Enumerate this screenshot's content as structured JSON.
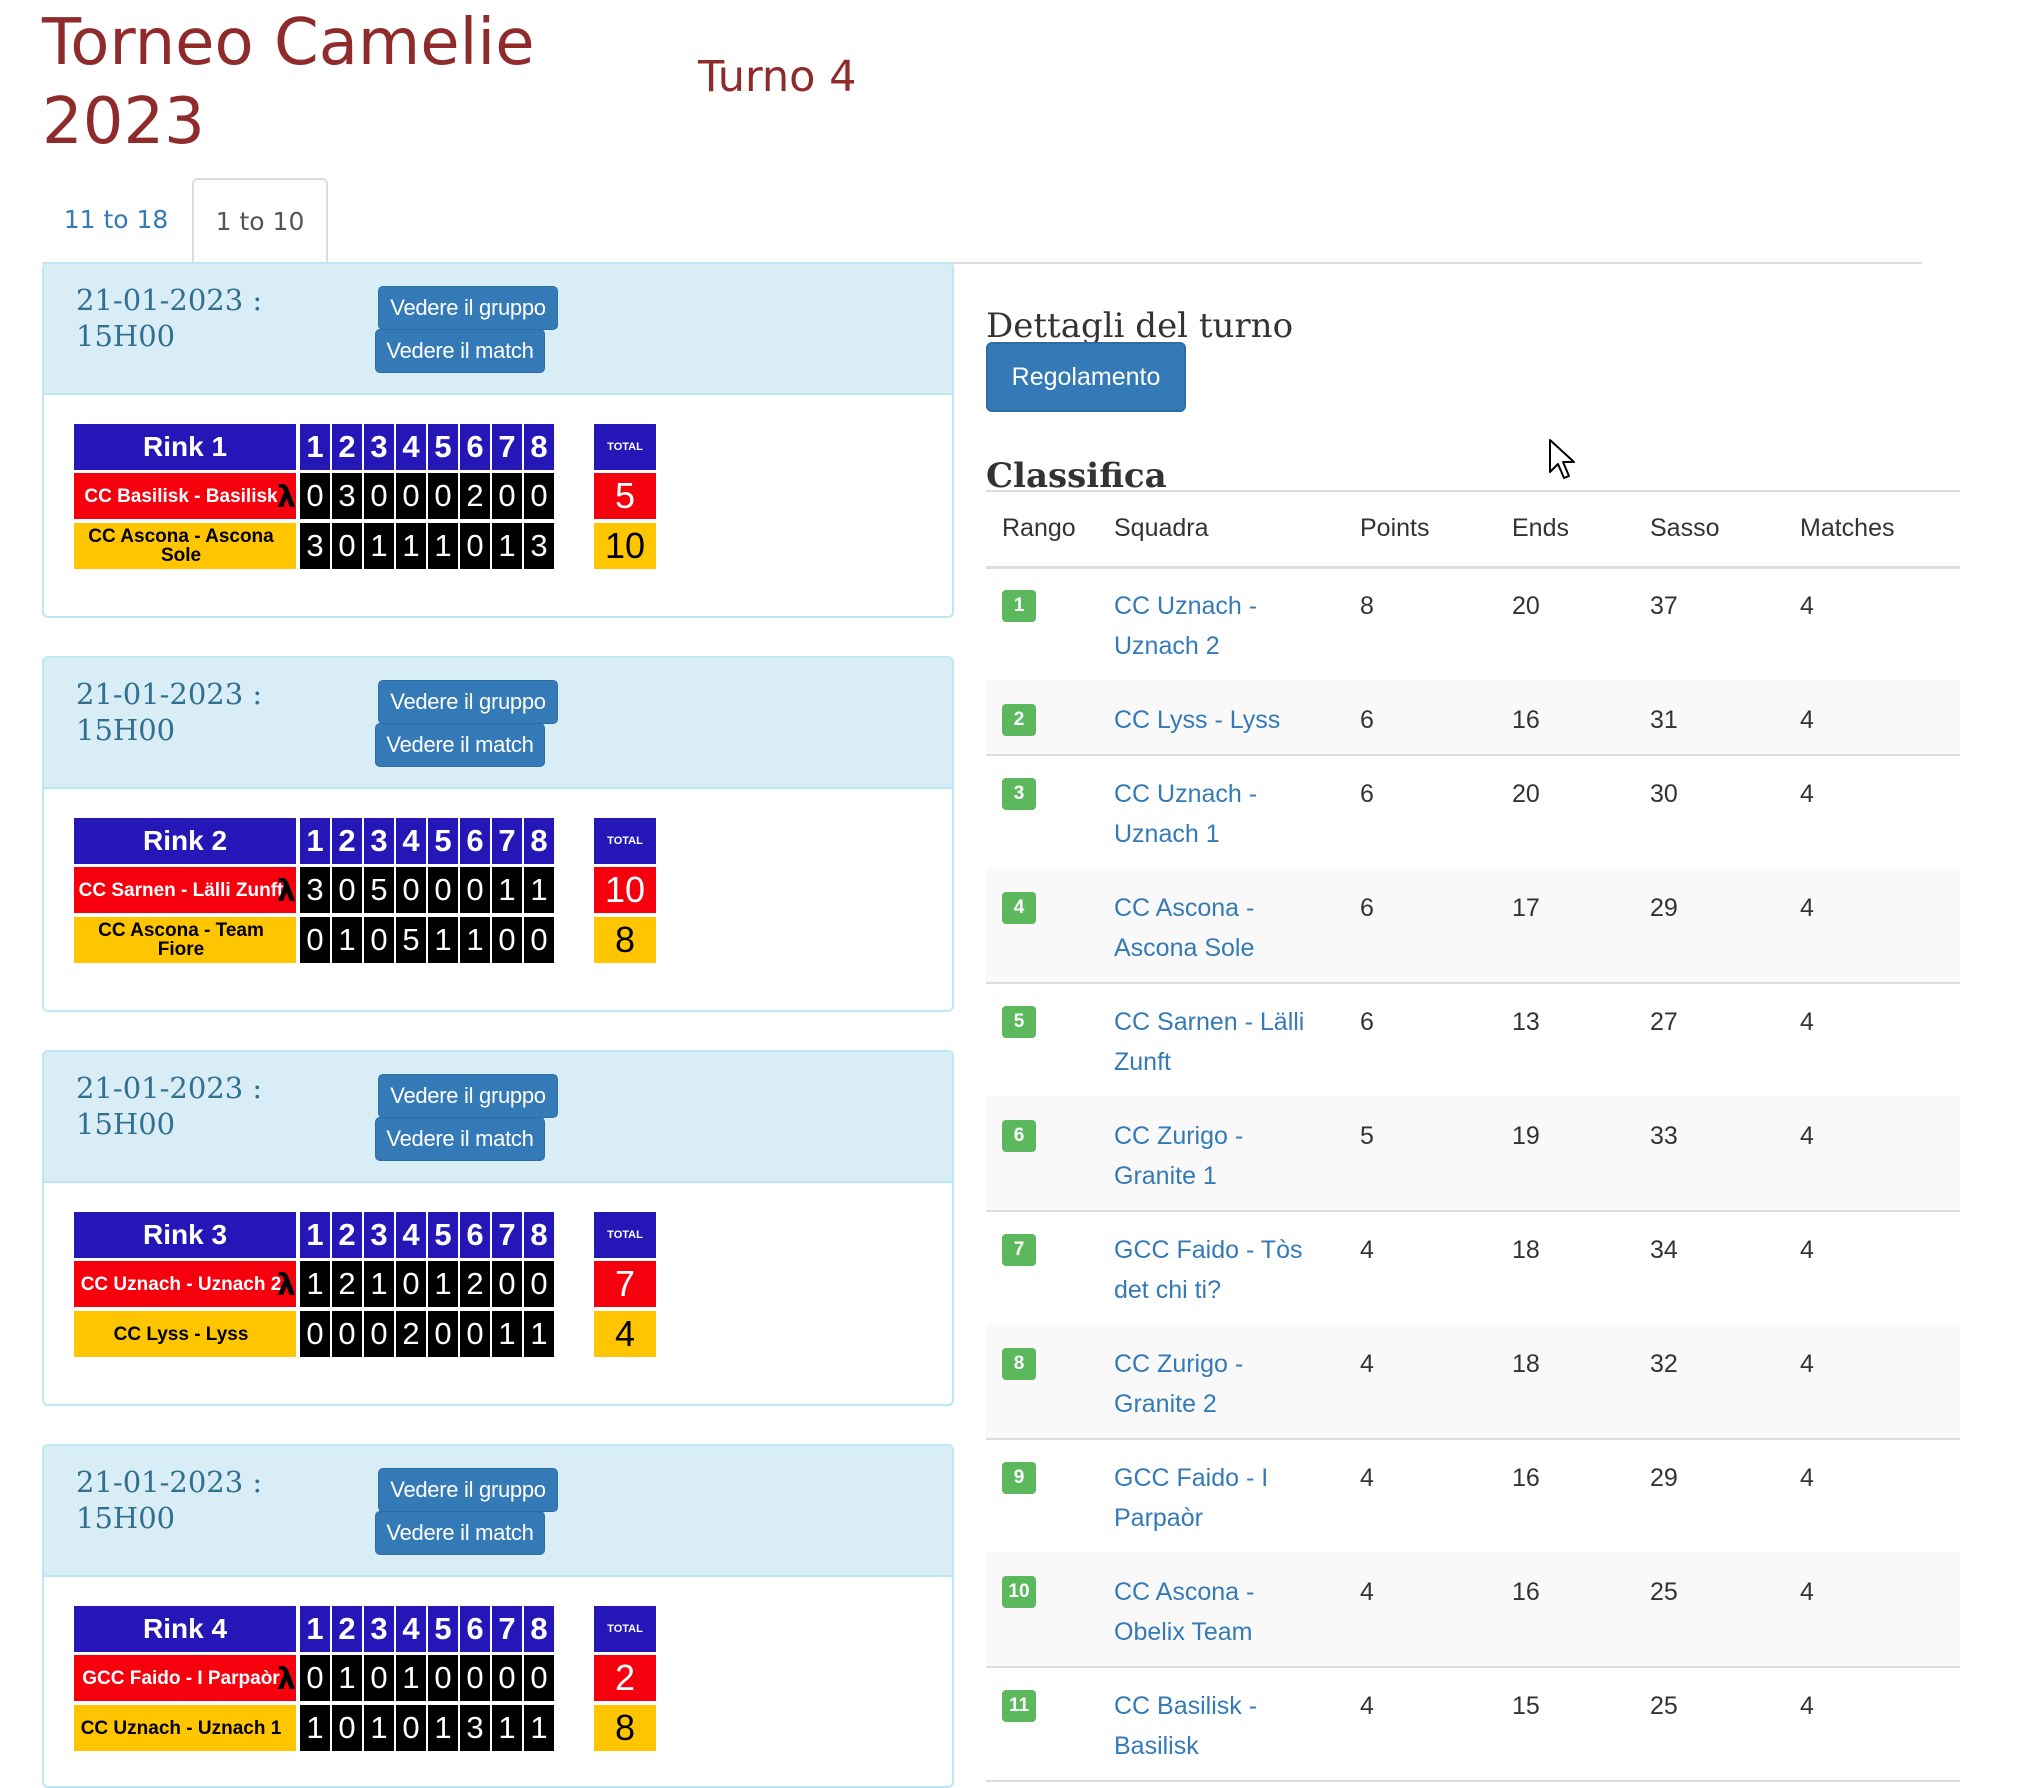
{
  "header": {
    "title": "Torneo Camelie 2023",
    "round": "Turno 4"
  },
  "tabs": [
    {
      "label": "11 to 18",
      "active": false
    },
    {
      "label": "1 to 10",
      "active": true
    }
  ],
  "matches": [
    {
      "datetime": "21-01-2023 : 15H00",
      "group_button": "Vedere il gruppo",
      "match_button": "Vedere il match",
      "rink": "Rink 1",
      "ends": [
        "1",
        "2",
        "3",
        "4",
        "5",
        "6",
        "7",
        "8"
      ],
      "total_label": "TOTAL",
      "team_red": {
        "name": "CC Basilisk - Basilisk",
        "scores": [
          "0",
          "3",
          "0",
          "0",
          "0",
          "2",
          "0",
          "0"
        ],
        "total": "5"
      },
      "team_yellow": {
        "name": "CC Ascona - Ascona Sole",
        "scores": [
          "3",
          "0",
          "1",
          "1",
          "1",
          "0",
          "1",
          "3"
        ],
        "total": "10"
      }
    },
    {
      "datetime": "21-01-2023 : 15H00",
      "group_button": "Vedere il gruppo",
      "match_button": "Vedere il match",
      "rink": "Rink 2",
      "ends": [
        "1",
        "2",
        "3",
        "4",
        "5",
        "6",
        "7",
        "8"
      ],
      "total_label": "TOTAL",
      "team_red": {
        "name": "CC Sarnen - Lälli Zunft",
        "scores": [
          "3",
          "0",
          "5",
          "0",
          "0",
          "0",
          "1",
          "1"
        ],
        "total": "10"
      },
      "team_yellow": {
        "name": "CC Ascona - Team Fiore",
        "scores": [
          "0",
          "1",
          "0",
          "5",
          "1",
          "1",
          "0",
          "0"
        ],
        "total": "8"
      }
    },
    {
      "datetime": "21-01-2023 : 15H00",
      "group_button": "Vedere il gruppo",
      "match_button": "Vedere il match",
      "rink": "Rink 3",
      "ends": [
        "1",
        "2",
        "3",
        "4",
        "5",
        "6",
        "7",
        "8"
      ],
      "total_label": "TOTAL",
      "team_red": {
        "name": "CC Uznach - Uznach 2",
        "scores": [
          "1",
          "2",
          "1",
          "0",
          "1",
          "2",
          "0",
          "0"
        ],
        "total": "7"
      },
      "team_yellow": {
        "name": "CC Lyss - Lyss",
        "scores": [
          "0",
          "0",
          "0",
          "2",
          "0",
          "0",
          "1",
          "1"
        ],
        "total": "4"
      }
    },
    {
      "datetime": "21-01-2023 : 15H00",
      "group_button": "Vedere il gruppo",
      "match_button": "Vedere il match",
      "rink": "Rink 4",
      "ends": [
        "1",
        "2",
        "3",
        "4",
        "5",
        "6",
        "7",
        "8"
      ],
      "total_label": "TOTAL",
      "team_red": {
        "name": "GCC Faido - I Parpaòr",
        "scores": [
          "0",
          "1",
          "0",
          "1",
          "0",
          "0",
          "0",
          "0"
        ],
        "total": "2"
      },
      "team_yellow": {
        "name": "CC Uznach - Uznach 1",
        "scores": [
          "1",
          "0",
          "1",
          "0",
          "1",
          "3",
          "1",
          "1"
        ],
        "total": "8"
      }
    }
  ],
  "details": {
    "title": "Dettagli del turno",
    "rules_button": "Regolamento",
    "ranking_title": "Classifica"
  },
  "standings": {
    "columns": [
      "Rango",
      "Squadra",
      "Points",
      "Ends",
      "Sasso",
      "Matches"
    ],
    "rows": [
      {
        "rank": "1",
        "team": "CC Uznach - Uznach 2",
        "points": "8",
        "ends": "20",
        "sasso": "37",
        "matches": "4"
      },
      {
        "rank": "2",
        "team": "CC Lyss - Lyss",
        "points": "6",
        "ends": "16",
        "sasso": "31",
        "matches": "4"
      },
      {
        "rank": "3",
        "team": "CC Uznach - Uznach 1",
        "points": "6",
        "ends": "20",
        "sasso": "30",
        "matches": "4"
      },
      {
        "rank": "4",
        "team": "CC Ascona - Ascona Sole",
        "points": "6",
        "ends": "17",
        "sasso": "29",
        "matches": "4"
      },
      {
        "rank": "5",
        "team": "CC Sarnen - Lälli Zunft",
        "points": "6",
        "ends": "13",
        "sasso": "27",
        "matches": "4"
      },
      {
        "rank": "6",
        "team": "CC Zurigo - Granite 1",
        "points": "5",
        "ends": "19",
        "sasso": "33",
        "matches": "4"
      },
      {
        "rank": "7",
        "team": "GCC Faido - Tòs det chi ti?",
        "points": "4",
        "ends": "18",
        "sasso": "34",
        "matches": "4"
      },
      {
        "rank": "8",
        "team": "CC Zurigo - Granite 2",
        "points": "4",
        "ends": "18",
        "sasso": "32",
        "matches": "4"
      },
      {
        "rank": "9",
        "team": "GCC Faido - I Parpaòr",
        "points": "4",
        "ends": "16",
        "sasso": "29",
        "matches": "4"
      },
      {
        "rank": "10",
        "team": "CC Ascona - Obelix Team",
        "points": "4",
        "ends": "16",
        "sasso": "25",
        "matches": "4"
      },
      {
        "rank": "11",
        "team": "CC Basilisk - Basilisk",
        "points": "4",
        "ends": "15",
        "sasso": "25",
        "matches": "4"
      }
    ]
  },
  "colors": {
    "brand_title": "#8f2b2b",
    "link": "#337ab7",
    "board_blue": "#2516b8",
    "team_red": "#f5000c",
    "team_yellow": "#ffc600",
    "badge_green": "#5cb85c",
    "panel_head": "#d9edf7"
  },
  "icons": {
    "hammer": "hammer-icon",
    "cursor": "mouse-cursor-icon"
  }
}
